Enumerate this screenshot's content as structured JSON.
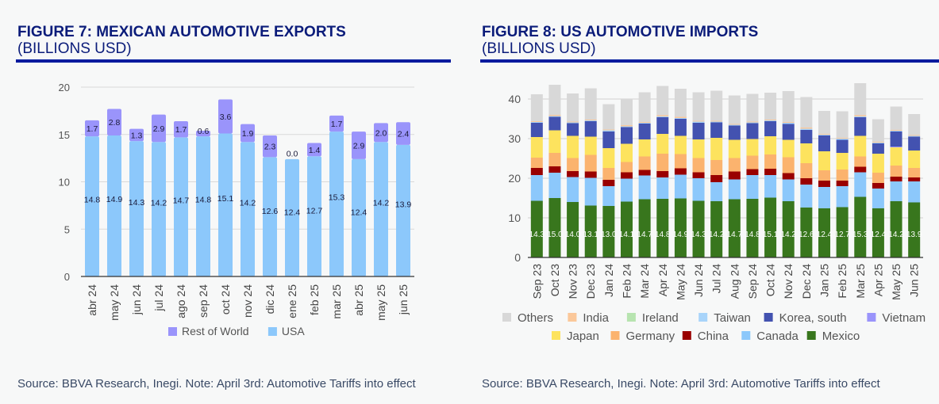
{
  "figure7": {
    "title": "FIGURE 7: MEXICAN AUTOMOTIVE EXPORTS",
    "subtitle": "(BILLIONS USD)",
    "source": "Source: BBVA Research, Inegi. Note: April 3rd: Automotive Tariffs into effect"
  },
  "figure8": {
    "title": "FIGURE 8: US AUTOMOTIVE IMPORTS",
    "subtitle": "(BILLIONS USD)",
    "source": "Source: BBVA Research, Inegi. Note: April 3rd: Automotive Tariffs into effect"
  },
  "chart_data": [
    {
      "type": "bar",
      "stacked": true,
      "title": "FIGURE 7: MEXICAN AUTOMOTIVE EXPORTS (BILLIONS USD)",
      "xlabel": "",
      "ylabel": "",
      "ylim": [
        0,
        20
      ],
      "yticks": [
        0,
        5,
        10,
        15,
        20
      ],
      "grid": true,
      "legend_position": "bottom",
      "categories": [
        "abr 24",
        "may 24",
        "jun 24",
        "jul 24",
        "ago 24",
        "sep 24",
        "oct 24",
        "nov 24",
        "dic 24",
        "ene 25",
        "feb 25",
        "mar 25",
        "abr 25",
        "may 25",
        "jun 25"
      ],
      "series": [
        {
          "name": "USA",
          "color": "#8cc8fb",
          "values": [
            14.8,
            14.9,
            14.3,
            14.2,
            14.7,
            14.8,
            15.1,
            14.2,
            12.6,
            12.4,
            12.7,
            15.3,
            12.4,
            14.2,
            13.9
          ]
        },
        {
          "name": "Rest of World",
          "color": "#9a94fb",
          "values": [
            1.7,
            2.8,
            1.3,
            2.9,
            1.7,
            0.6,
            3.6,
            1.9,
            2.3,
            0.0,
            1.4,
            1.7,
            2.9,
            2.0,
            2.4
          ]
        }
      ],
      "legend": [
        "Rest of World",
        "USA"
      ],
      "data_labels": true
    },
    {
      "type": "bar",
      "stacked": true,
      "title": "FIGURE 8: US AUTOMOTIVE IMPORTS (BILLIONS USD)",
      "xlabel": "",
      "ylabel": "",
      "ylim": [
        0,
        45
      ],
      "yticks": [
        0,
        10,
        20,
        30,
        40
      ],
      "grid": true,
      "legend_position": "bottom",
      "categories": [
        "Sep 23",
        "Oct 23",
        "Nov 23",
        "Dec 23",
        "Jan 24",
        "Feb 24",
        "Mar 24",
        "Apr 24",
        "May 24",
        "Jun 24",
        "Jul 24",
        "Aug 24",
        "Sep 24",
        "Oct 24",
        "Nov 24",
        "Dec 24",
        "Jan 25",
        "Feb 25",
        "Mar 25",
        "Apr 25",
        "May 25",
        "Jun 25"
      ],
      "series": [
        {
          "name": "Mexico",
          "color": "#38761d",
          "values": [
            14.3,
            15.0,
            14.0,
            13.1,
            13.0,
            14.1,
            14.7,
            14.8,
            14.9,
            14.3,
            14.2,
            14.7,
            14.8,
            15.1,
            14.2,
            12.6,
            12.4,
            12.7,
            15.3,
            12.4,
            14.2,
            13.9
          ]
        },
        {
          "name": "Canada",
          "color": "#8cc8fb",
          "values": [
            6.5,
            6.4,
            6.3,
            7.0,
            5.0,
            5.8,
            6.0,
            5.4,
            6.0,
            5.7,
            4.8,
            5.0,
            6.0,
            5.7,
            5.5,
            5.8,
            5.4,
            5.3,
            6.2,
            5.0,
            5.0,
            5.3
          ]
        },
        {
          "name": "China",
          "color": "#990000",
          "values": [
            1.8,
            1.6,
            1.5,
            1.6,
            1.6,
            1.6,
            1.4,
            1.6,
            1.6,
            1.5,
            1.8,
            2.0,
            1.5,
            1.6,
            1.6,
            1.6,
            1.6,
            1.4,
            1.4,
            1.4,
            1.2,
            1.0
          ]
        },
        {
          "name": "Germany",
          "color": "#fbb36e",
          "values": [
            2.6,
            3.4,
            3.3,
            4.2,
            3.0,
            2.6,
            3.4,
            4.4,
            3.6,
            3.6,
            3.8,
            3.4,
            3.4,
            3.6,
            4.0,
            3.8,
            2.6,
            2.8,
            2.6,
            2.6,
            2.8,
            2.4
          ]
        },
        {
          "name": "Japan",
          "color": "#fde35e",
          "values": [
            5.2,
            5.7,
            5.6,
            4.6,
            5.0,
            4.6,
            4.3,
            5.0,
            4.6,
            4.7,
            5.6,
            4.6,
            4.2,
            4.6,
            4.4,
            5.0,
            4.8,
            4.2,
            5.2,
            4.8,
            4.6,
            4.4
          ]
        },
        {
          "name": "Vietnam",
          "color": "#9a94fb",
          "values": [
            0,
            0,
            0,
            0,
            0,
            0,
            0,
            0,
            0,
            0,
            0,
            0,
            0,
            0,
            0,
            0,
            0,
            0,
            0,
            0,
            0.2,
            0
          ]
        },
        {
          "name": "Korea, south",
          "color": "#4352b0",
          "values": [
            3.6,
            3.4,
            3.2,
            3.9,
            4.2,
            4.2,
            4.0,
            4.2,
            4.3,
            4.2,
            3.9,
            3.6,
            4.0,
            3.8,
            4.0,
            3.4,
            4.0,
            3.3,
            4.7,
            2.6,
            3.8,
            3.5
          ]
        },
        {
          "name": "Taiwan",
          "color": "#a8d4fa",
          "values": [
            0.2,
            0.2,
            0.2,
            0.2,
            0.3,
            0.2,
            0.2,
            0.2,
            0.2,
            0.3,
            0.2,
            0.2,
            0.2,
            0.2,
            0.3,
            0.3,
            0.2,
            0.3,
            0.2,
            0.2,
            0.2,
            0.2
          ]
        },
        {
          "name": "Ireland",
          "color": "#b7e4b0",
          "values": [
            0,
            0,
            0,
            0,
            0,
            0,
            0,
            0,
            0,
            0,
            0,
            0,
            0,
            0,
            0,
            0,
            0,
            0,
            0,
            0,
            0,
            0
          ]
        },
        {
          "name": "India",
          "color": "#fbc89a",
          "values": [
            0.2,
            0.3,
            0.2,
            0.2,
            0.2,
            0.3,
            0.2,
            0.3,
            0.3,
            0.2,
            0.2,
            0.2,
            0.2,
            0.2,
            0.2,
            0.3,
            0.2,
            0.2,
            0.3,
            0.2,
            0.2,
            0.2
          ]
        },
        {
          "name": "Others",
          "color": "#d8d8d8",
          "values": [
            6.8,
            7.6,
            7.1,
            7.9,
            6.4,
            6.6,
            7.5,
            7.4,
            7.1,
            7.2,
            7.6,
            7.2,
            7.0,
            6.8,
            7.8,
            7.7,
            5.8,
            6.7,
            8.1,
            5.7,
            5.9,
            5.3
          ]
        }
      ],
      "legend": [
        "Others",
        "India",
        "Ireland",
        "Taiwan",
        "Korea, south",
        "Vietnam",
        "Japan",
        "Germany",
        "China",
        "Canada",
        "Mexico"
      ],
      "data_labels_series": "Mexico"
    }
  ]
}
